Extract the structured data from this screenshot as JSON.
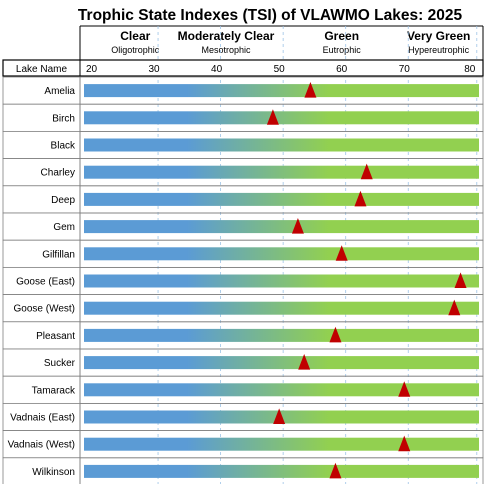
{
  "chart_data": {
    "type": "bar",
    "title": "Trophic State Indexes (TSI) of VLAWMO Lakes: 2025",
    "row_header": "Lake Name",
    "xlim": [
      17,
      82
    ],
    "xticks": [
      20,
      30,
      40,
      50,
      60,
      70,
      80
    ],
    "categories_header": [
      {
        "title": "Clear",
        "subtitle": "Oligotrophic",
        "at": 27
      },
      {
        "title": "Moderately Clear",
        "subtitle": "Mesotrophic",
        "at": 41.5
      },
      {
        "title": "Green",
        "subtitle": "Eutrophic",
        "at": 60
      },
      {
        "title": "Very Green",
        "subtitle": "Hypereutrophic",
        "at": 75.5
      }
    ],
    "lakes": [
      "Amelia",
      "Birch",
      "Black",
      "Charley",
      "Deep",
      "Gem",
      "Gilfillan",
      "Goose (East)",
      "Goose (West)",
      "Pleasant",
      "Sucker",
      "Tamarack",
      "Vadnais (East)",
      "Vadnais (West)",
      "Wilkinson"
    ],
    "values": [
      55,
      49,
      null,
      64,
      63,
      53,
      60,
      79,
      78,
      59,
      54,
      70,
      50,
      70,
      59
    ],
    "colors": {
      "clear": "#5b9bd5",
      "green": "#92d050",
      "marker": "#c00000",
      "row_border": "#7f7f7f"
    }
  }
}
